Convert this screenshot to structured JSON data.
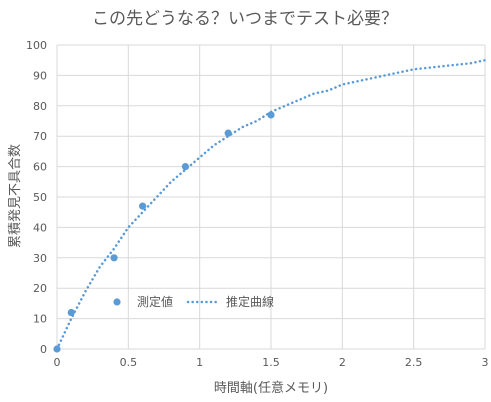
{
  "chart_data": {
    "type": "scatter",
    "title": "この先どうなる？いつまでテスト必要？",
    "xlabel": "時間軸(任意メモリ)",
    "ylabel": "累積発見不具合数",
    "xlim": [
      0,
      3
    ],
    "ylim": [
      0,
      100
    ],
    "x_ticks": [
      0,
      0.5,
      1,
      1.5,
      2,
      2.5,
      3
    ],
    "x_tick_labels": [
      "0",
      "0.5",
      "1",
      "1.5",
      "2",
      "2.5",
      "3"
    ],
    "y_ticks": [
      0,
      10,
      20,
      30,
      40,
      50,
      60,
      70,
      80,
      90,
      100
    ],
    "y_tick_labels": [
      "0",
      "10",
      "20",
      "30",
      "40",
      "50",
      "60",
      "70",
      "80",
      "90",
      "100"
    ],
    "grid": true,
    "legend_position": "bottom-left inside plot",
    "series": [
      {
        "name": "測定値",
        "kind": "scatter",
        "color": "#5B9BD5",
        "x": [
          0,
          0.1,
          0.4,
          0.6,
          0.9,
          1.2,
          1.5
        ],
        "y": [
          0,
          12,
          30,
          47,
          60,
          71,
          77
        ]
      },
      {
        "name": "推定曲線",
        "kind": "line-dotted",
        "color": "#5B9BD5",
        "x": [
          0,
          0.1,
          0.2,
          0.3,
          0.4,
          0.5,
          0.6,
          0.7,
          0.8,
          0.9,
          1.0,
          1.1,
          1.2,
          1.3,
          1.4,
          1.5,
          1.6,
          1.7,
          1.8,
          1.9,
          2.0,
          2.1,
          2.2,
          2.3,
          2.4,
          2.5,
          2.6,
          2.7,
          2.8,
          2.9,
          3.0
        ],
        "y": [
          0,
          10,
          19,
          27,
          33,
          40,
          45,
          50,
          55,
          59,
          63,
          67,
          70,
          73,
          75,
          78,
          80,
          82,
          84,
          85,
          87,
          88,
          89,
          90,
          91,
          92,
          92.5,
          93,
          93.5,
          94,
          95
        ]
      }
    ]
  },
  "colors": {
    "series": "#5B9BD5",
    "grid": "#D9D9D9",
    "text": "#595959"
  }
}
